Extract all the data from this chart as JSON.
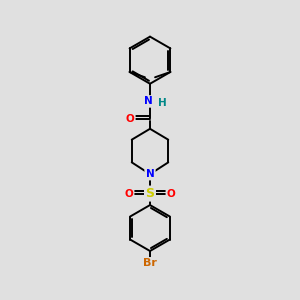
{
  "bg_color": "#e0e0e0",
  "bond_color": "#000000",
  "bond_lw": 1.4,
  "atom_colors": {
    "N": "#0000ff",
    "O": "#ff0000",
    "S": "#cccc00",
    "Br": "#cc6600",
    "H": "#008888",
    "C": "#000000"
  },
  "font_size": 7.5
}
